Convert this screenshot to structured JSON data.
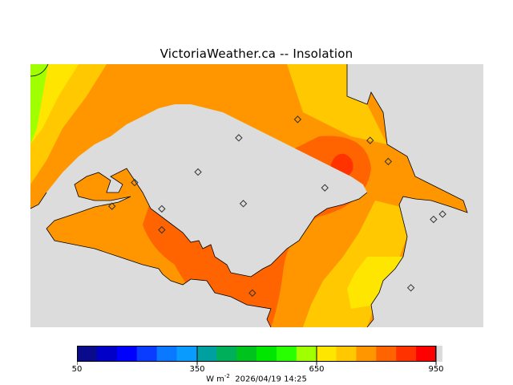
{
  "title": "VictoriaWeather.ca -- Insolation",
  "footer": {
    "units_prefix": "W m",
    "units_exp": "-2",
    "timestamp": "2026/04/19 14:25"
  },
  "colorbar": {
    "min": 50,
    "max": 950,
    "ticks": [
      "50",
      "350",
      "650",
      "950"
    ],
    "colors": [
      "#0a0a8c",
      "#0000c8",
      "#0000ff",
      "#0a3cff",
      "#0a78ff",
      "#0a9bff",
      "#00a0a0",
      "#00af5a",
      "#00c31e",
      "#00e600",
      "#28ff00",
      "#a0ff00",
      "#ffe600",
      "#ffc800",
      "#ff9600",
      "#ff6400",
      "#ff3200",
      "#ff0000"
    ],
    "end_color": "#dcdcdc"
  },
  "stations": [
    {
      "lon": 0.46,
      "lat": 0.72
    },
    {
      "lon": 0.23,
      "lat": 0.55
    },
    {
      "lon": 0.37,
      "lat": 0.59
    },
    {
      "lon": 0.59,
      "lat": 0.79
    },
    {
      "lon": 0.79,
      "lat": 0.63
    },
    {
      "lon": 0.75,
      "lat": 0.71
    },
    {
      "lon": 0.65,
      "lat": 0.53
    },
    {
      "lon": 0.91,
      "lat": 0.43
    },
    {
      "lon": 0.89,
      "lat": 0.41
    },
    {
      "lon": 0.47,
      "lat": 0.47
    },
    {
      "lon": 0.29,
      "lat": 0.45
    },
    {
      "lon": 0.29,
      "lat": 0.37
    },
    {
      "lon": 0.18,
      "lat": 0.46
    },
    {
      "lon": 0.49,
      "lat": 0.13
    },
    {
      "lon": 0.84,
      "lat": 0.15
    }
  ]
}
